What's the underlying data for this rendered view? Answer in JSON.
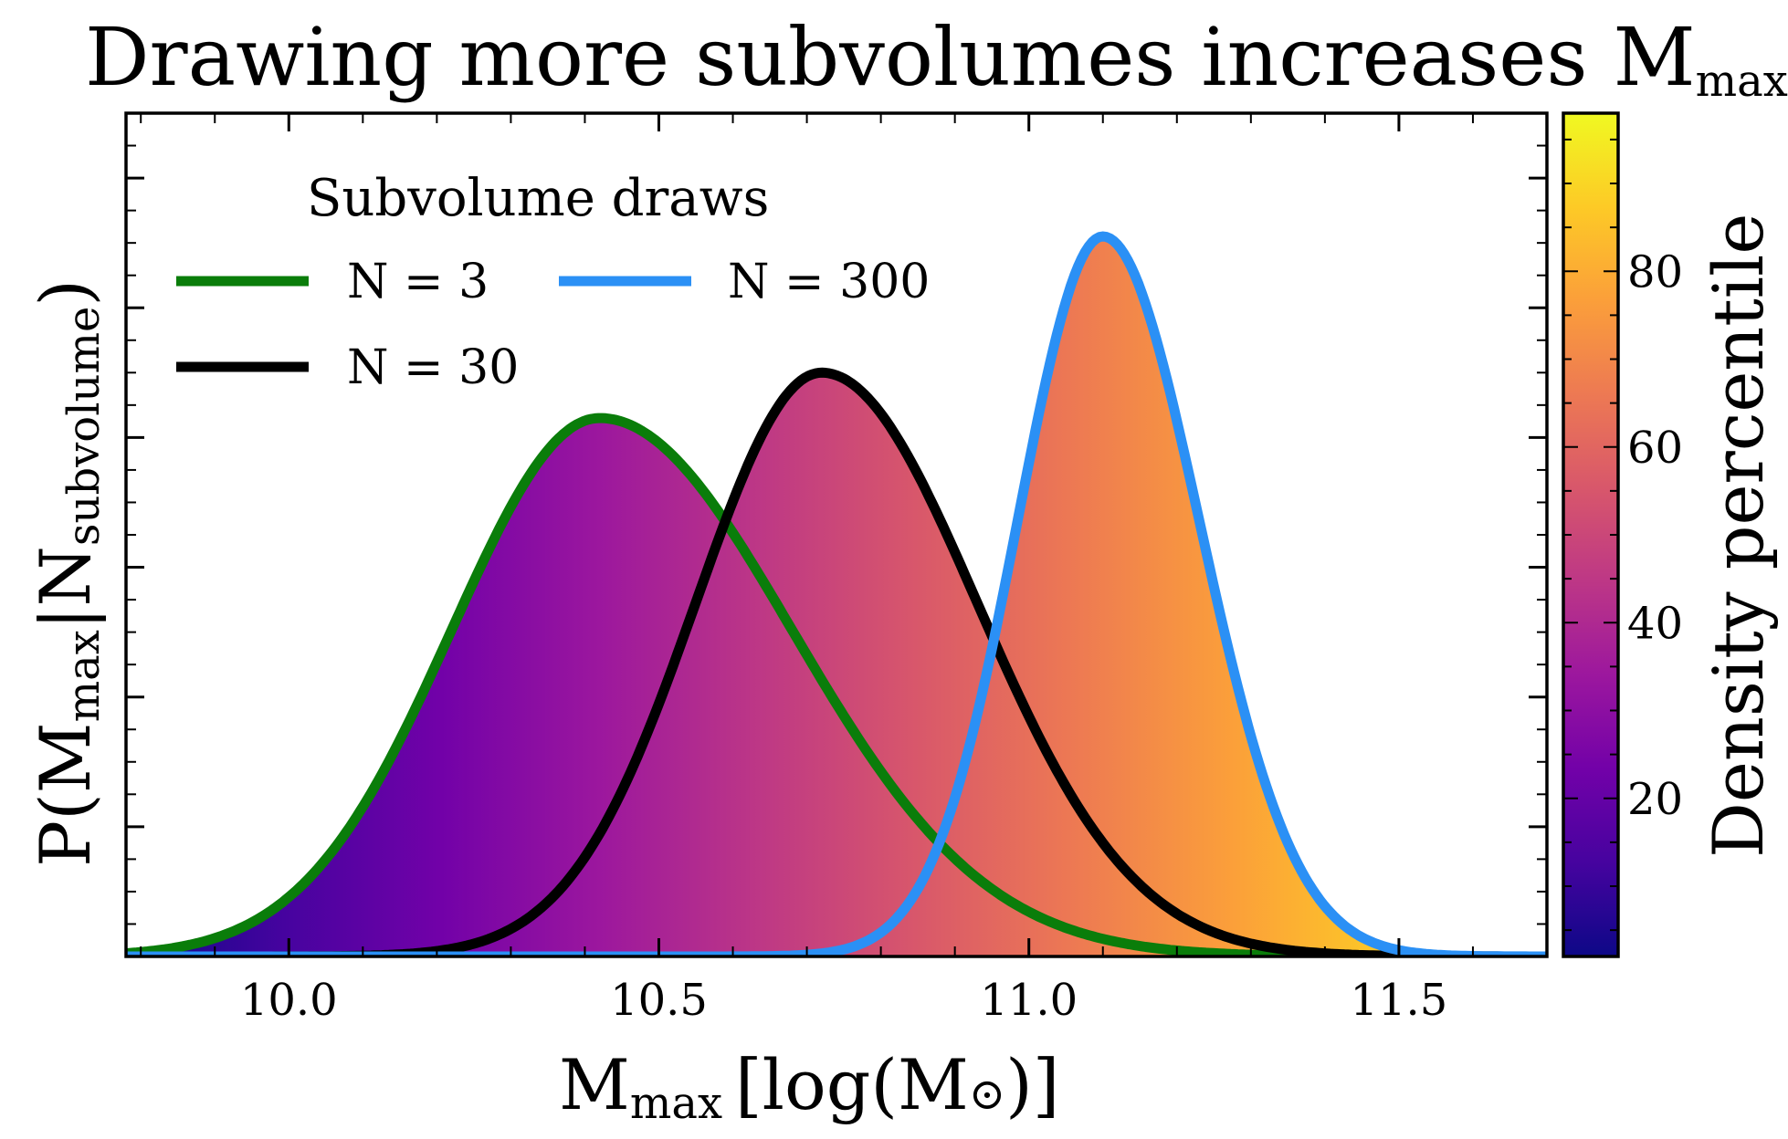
{
  "chart_data": {
    "type": "line",
    "title": {
      "main": "Drawing more subvolumes increases M",
      "sub": "max"
    },
    "xlabel": {
      "main": "M",
      "sub": "max",
      "rest": "[log(M",
      "sun": "⊙",
      "close": ")]"
    },
    "ylabel": {
      "open": "P(M",
      "sub1": "max",
      "mid": "|N",
      "sub2": "subvolume",
      "close": ")"
    },
    "xlim": [
      9.78,
      11.7
    ],
    "ylim": [
      0,
      1.3
    ],
    "x_ticks": [
      10.0,
      10.5,
      11.0,
      11.5
    ],
    "x_tick_labels": [
      "10.0",
      "10.5",
      "11.0",
      "11.5"
    ],
    "legend": {
      "title": "Subvolume draws",
      "placement": "upper-left",
      "columns": 2
    },
    "fill": "area under the curves shaded with a horizontal plasma colormap gradient",
    "series": [
      {
        "name": "N = 3",
        "color": "#0a7d0a",
        "mu": 10.42,
        "sigma_left": 0.2,
        "sigma_right": 0.26,
        "peak": 0.83
      },
      {
        "name": "N = 30",
        "color": "#000000",
        "mu": 10.72,
        "sigma_left": 0.17,
        "sigma_right": 0.21,
        "peak": 0.9
      },
      {
        "name": "N = 300",
        "color": "#2b90f5",
        "mu": 11.1,
        "sigma_left": 0.115,
        "sigma_right": 0.13,
        "peak": 1.11
      }
    ],
    "colorbar": {
      "label": "Density percentile",
      "range": [
        2,
        98
      ],
      "ticks": [
        20,
        40,
        60,
        80
      ],
      "tick_labels": [
        "20",
        "40",
        "60",
        "80"
      ],
      "colormap": "plasma"
    }
  }
}
